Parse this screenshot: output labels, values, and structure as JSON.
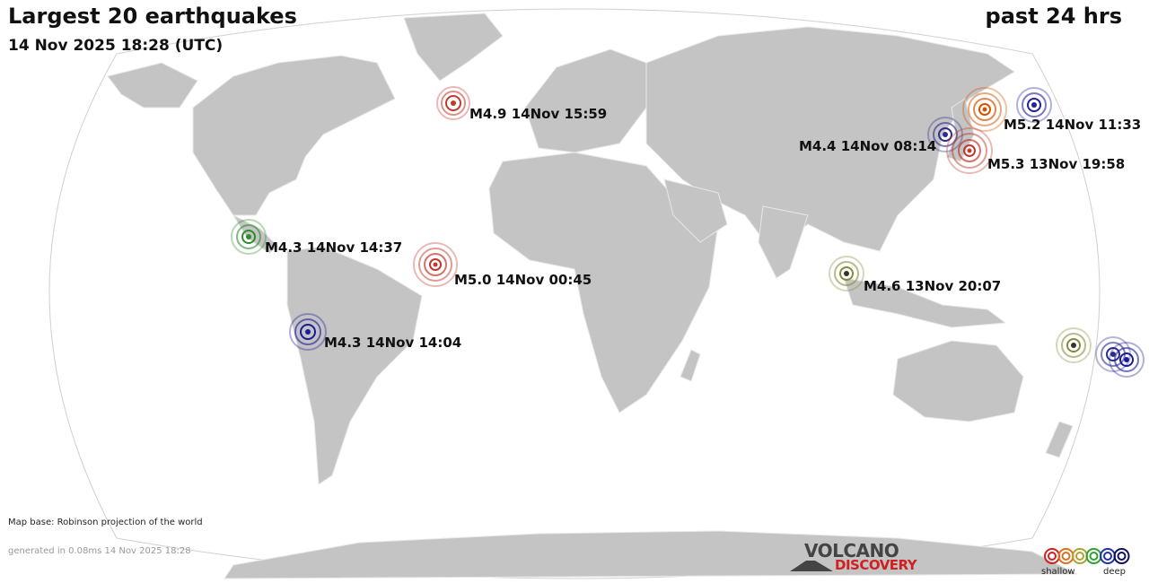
{
  "header": {
    "title": "Largest 20 earthquakes",
    "datetime": "14 Nov 2025 18:28 (UTC)",
    "period": "past 24 hrs"
  },
  "quakes": [
    {
      "label": "M4.9 14Nov 15:59",
      "color": "#c0392b",
      "depth": "shallow"
    },
    {
      "label": "M5.2 14Nov 11:33",
      "color": "#d35400",
      "depth": "shallow"
    },
    {
      "label": "M4.4 14Nov 08:14",
      "color": "#2c2c8c",
      "depth": "deep"
    },
    {
      "label": "M5.3 13Nov 19:58",
      "color": "#c0392b",
      "depth": "shallow"
    },
    {
      "label": "M4.3 14Nov 14:37",
      "color": "#2e8b2e",
      "depth": "intermediate"
    },
    {
      "label": "M5.0 14Nov 00:45",
      "color": "#c0392b",
      "depth": "shallow"
    },
    {
      "label": "M4.6 13Nov 20:07",
      "color": "#8a8a3a",
      "depth": "intermediate"
    },
    {
      "label": "M4.3 14Nov 14:04",
      "color": "#1a1a9c",
      "depth": "deep"
    }
  ],
  "footer": {
    "map_base": "Map base: Robinson projection of the world",
    "generated": "generated in 0.08ms 14 Nov 2025 18:28"
  },
  "logo": {
    "line1": "VOLCANO",
    "line2": "DISCOVERY"
  },
  "legend": {
    "shallow_label": "shallow",
    "deep_label": "deep",
    "colors": [
      "#d02020",
      "#e07020",
      "#b0a030",
      "#30a030",
      "#2030b0",
      "#101060"
    ]
  },
  "colors": {
    "land": "#c4c4c4",
    "ocean": "#ffffff",
    "border": "#e8e8e8"
  }
}
